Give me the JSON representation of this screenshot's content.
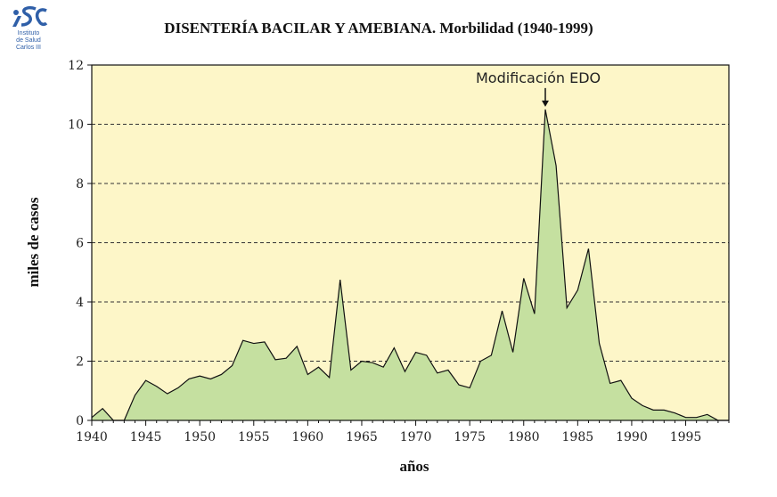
{
  "logo": {
    "lines": [
      "Instituto",
      "de Salud",
      "Carlos III"
    ]
  },
  "chart_data": {
    "type": "area",
    "title": "DISENTERÍA BACILAR Y AMEBIANA. Morbilidad (1940-1999)",
    "xlabel": "años",
    "ylabel": "miles de casos",
    "xlim": [
      1940,
      1999
    ],
    "ylim": [
      0,
      12
    ],
    "xticks": [
      1940,
      1945,
      1950,
      1955,
      1960,
      1965,
      1970,
      1975,
      1980,
      1985,
      1990,
      1995
    ],
    "yticks": [
      0,
      2,
      4,
      6,
      8,
      10,
      12
    ],
    "grid": "horizontal dashed",
    "colors": {
      "fill": "#c5e0a0",
      "line": "#111111",
      "background": "#fdf6c8"
    },
    "annotation": {
      "text": "Modificación EDO",
      "x": 1982,
      "y": 10.5
    },
    "x": [
      1940,
      1941,
      1942,
      1943,
      1944,
      1945,
      1946,
      1947,
      1948,
      1949,
      1950,
      1951,
      1952,
      1953,
      1954,
      1955,
      1956,
      1957,
      1958,
      1959,
      1960,
      1961,
      1962,
      1963,
      1964,
      1965,
      1966,
      1967,
      1968,
      1969,
      1970,
      1971,
      1972,
      1973,
      1974,
      1975,
      1976,
      1977,
      1978,
      1979,
      1980,
      1981,
      1982,
      1983,
      1984,
      1985,
      1986,
      1987,
      1988,
      1989,
      1990,
      1991,
      1992,
      1993,
      1994,
      1995,
      1996,
      1997,
      1998,
      1999
    ],
    "y": [
      0.1,
      0.4,
      0.0,
      0.0,
      0.85,
      1.35,
      1.15,
      0.9,
      1.1,
      1.4,
      1.5,
      1.4,
      1.55,
      1.85,
      2.7,
      2.6,
      2.65,
      2.05,
      2.1,
      2.5,
      1.55,
      1.8,
      1.45,
      4.75,
      1.7,
      2.0,
      1.95,
      1.8,
      2.45,
      1.65,
      2.3,
      2.2,
      1.6,
      1.7,
      1.2,
      1.1,
      2.0,
      2.2,
      3.7,
      2.3,
      4.8,
      3.6,
      10.5,
      8.6,
      3.8,
      4.4,
      5.8,
      2.6,
      1.25,
      1.35,
      0.75,
      0.5,
      0.35,
      0.35,
      0.25,
      0.1,
      0.1,
      0.2,
      0.0,
      0.0
    ]
  }
}
